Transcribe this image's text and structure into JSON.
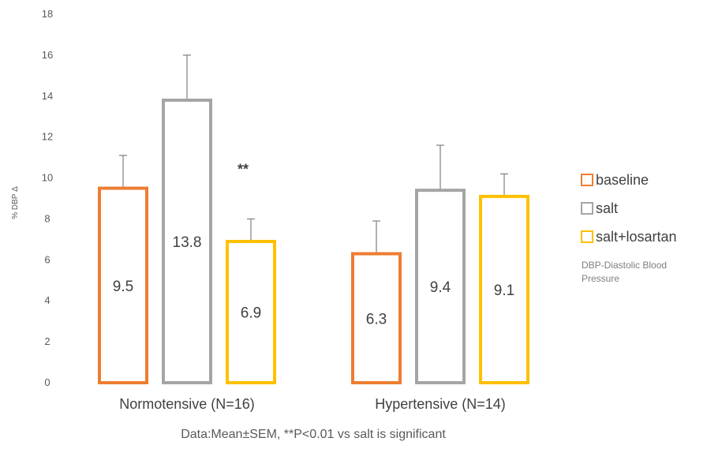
{
  "chart_data": {
    "type": "bar",
    "ylabel": "% DBP Δ",
    "ylim": [
      0,
      18
    ],
    "yticks": [
      0,
      2,
      4,
      6,
      8,
      10,
      12,
      14,
      16,
      18
    ],
    "ytick_labels": [
      "0",
      "2",
      "4",
      "6",
      "8",
      "10",
      "12",
      "14",
      "16",
      "18"
    ],
    "grid": false,
    "legend_position": "right",
    "categories": [
      "Normotensive (N=16)",
      "Hypertensive (N=14)"
    ],
    "series": [
      {
        "name": "baseline",
        "color": "#ED7D31",
        "values": [
          9.5,
          6.3
        ],
        "value_labels": [
          "9.5",
          "6.3"
        ],
        "error": [
          1.6,
          1.6
        ]
      },
      {
        "name": "salt",
        "color": "#A5A5A5",
        "values": [
          13.8,
          9.4
        ],
        "value_labels": [
          "13.8",
          "9.4"
        ],
        "error": [
          2.2,
          2.2
        ]
      },
      {
        "name": "salt+losartan",
        "color": "#FFC000",
        "values": [
          6.9,
          9.1
        ],
        "value_labels": [
          "6.9",
          "9.1"
        ],
        "error": [
          1.1,
          1.1
        ]
      }
    ],
    "annotations": [
      {
        "text": "**",
        "category_index": 0,
        "series_index": 2,
        "y": 10.5
      }
    ],
    "legend_note": [
      "DBP-Diastolic Blood",
      "Pressure"
    ],
    "caption": "Data:Mean±SEM, **P<0.01 vs salt is significant"
  }
}
